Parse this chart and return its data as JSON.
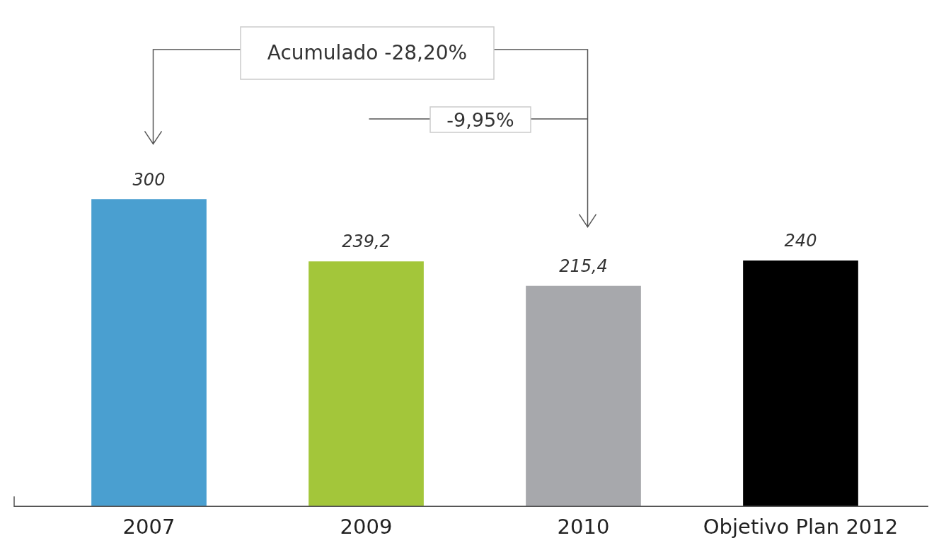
{
  "chart_data": {
    "type": "bar",
    "categories": [
      "2007",
      "2009",
      "2010",
      "Objetivo Plan 2012"
    ],
    "values": [
      300,
      239.2,
      215.4,
      240
    ],
    "colors": [
      "#4a9fd0",
      "#a3c63a",
      "#a7a8ac",
      "#000000"
    ],
    "value_labels": [
      "300",
      "239,2",
      "215,4",
      "240"
    ],
    "annotations": [
      "Acumulado -28,20%",
      "-9,95%"
    ],
    "grid": false,
    "legend": false
  }
}
